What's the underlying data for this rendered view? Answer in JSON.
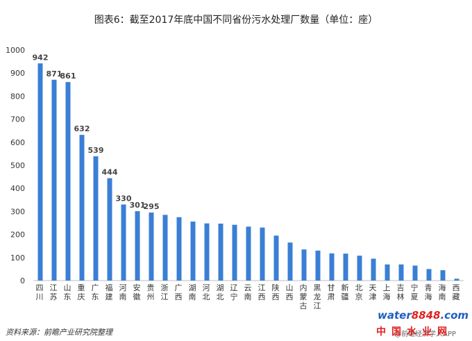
{
  "chart_data": {
    "type": "bar",
    "title": "图表6：截至2017年底中国不同省份污水处理厂数量（单位：座）",
    "categories": [
      "四川",
      "江苏",
      "山东",
      "重庆",
      "广东",
      "福建",
      "河南",
      "安徽",
      "贵州",
      "浙江",
      "广西",
      "湖南",
      "河北",
      "湖北",
      "辽宁",
      "云南",
      "江西",
      "陕西",
      "山西",
      "内蒙古",
      "黑龙江",
      "甘肃",
      "新疆",
      "北京",
      "天津",
      "上海",
      "吉林",
      "宁夏",
      "青海",
      "海南",
      "西藏"
    ],
    "values": [
      942,
      871,
      861,
      632,
      539,
      444,
      330,
      301,
      295,
      285,
      275,
      256,
      248,
      247,
      242,
      234,
      230,
      195,
      165,
      135,
      130,
      118,
      117,
      108,
      95,
      70,
      70,
      65,
      50,
      45,
      8
    ],
    "labeled_values": [
      942,
      871,
      861,
      632,
      539,
      444,
      330,
      301,
      295
    ],
    "ylim": [
      0,
      1000
    ],
    "yticks": [
      0,
      100,
      200,
      300,
      400,
      500,
      600,
      700,
      800,
      900,
      1000
    ],
    "bar_color": "#3a7fd5",
    "grid": false,
    "xlabel": "",
    "ylabel": ""
  },
  "source": "资料来源：前瞻产业研究院整理",
  "logo": {
    "brand_water": "water",
    "brand_num": "8848",
    "brand_suffix": ".com",
    "brand_cn": "中国水业网"
  },
  "watermark": "@前瞻经济学人APP"
}
